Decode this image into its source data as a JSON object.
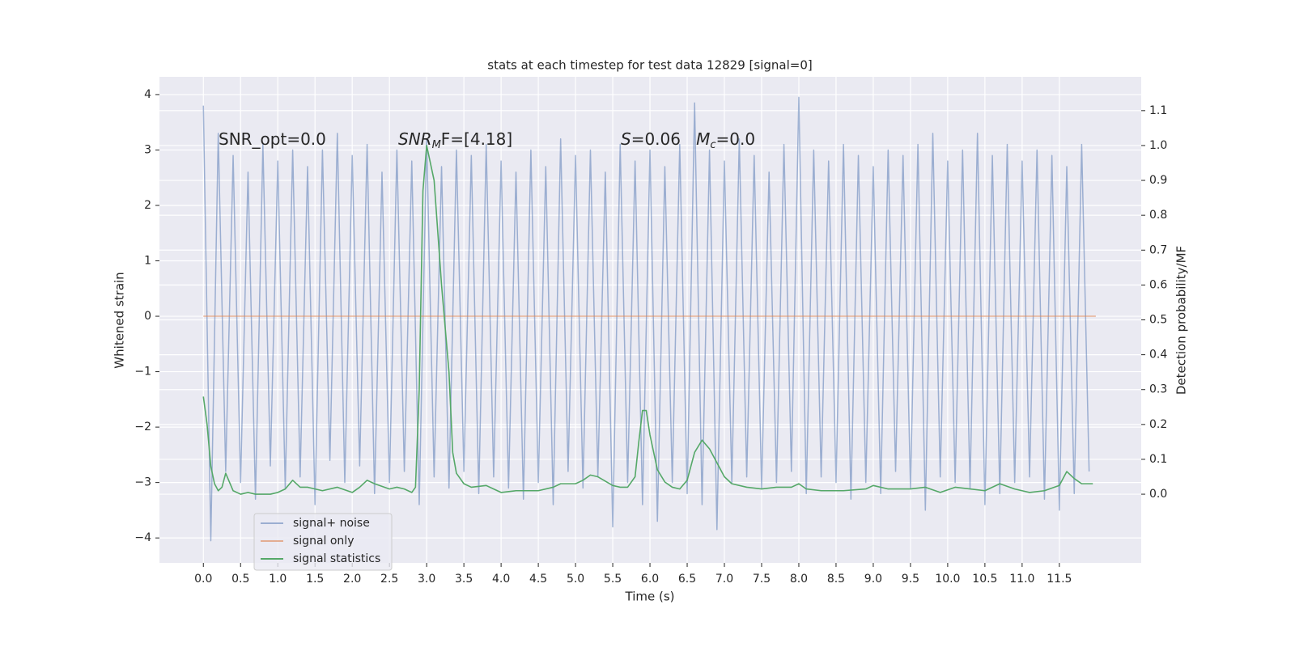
{
  "chart_data": {
    "type": "line",
    "title": "stats at each timestep for test data 12829 [signal=0]",
    "xlabel": "Time (s)",
    "ylabel": "Whitened strain",
    "y2label": "Detection probability/MF",
    "annotations": [
      [
        {
          "text": "SNR_opt=0.0"
        }
      ],
      [
        {
          "text": "SNR",
          "italic": true
        },
        {
          "text": "M",
          "italic": true,
          "sub": true
        },
        {
          "text": "F=[4.18]"
        }
      ],
      [
        {
          "text": "S",
          "italic": true
        },
        {
          "text": "=0.06   "
        },
        {
          "text": "M",
          "italic": true
        },
        {
          "text": "c",
          "italic": true,
          "sub": true
        },
        {
          "text": "=0.0"
        }
      ]
    ],
    "xlim": [
      -0.59,
      12.6
    ],
    "ylim": [
      -4.45,
      4.32
    ],
    "y2lim": [
      -0.197,
      1.197
    ],
    "xticks": [
      {
        "value": 0,
        "label": "0.0"
      },
      0.5,
      {
        "value": 1,
        "label": "1.0"
      },
      1.5,
      {
        "value": 2,
        "label": "2.0"
      },
      2.5,
      {
        "value": 3,
        "label": "3.0"
      },
      3.5,
      {
        "value": 4,
        "label": "4.0"
      },
      4.5,
      {
        "value": 5,
        "label": "5.0"
      },
      5.5,
      {
        "value": 6,
        "label": "6.0"
      },
      6.5,
      {
        "value": 7,
        "label": "7.0"
      },
      7.5,
      {
        "value": 8,
        "label": "8.0"
      },
      8.5,
      {
        "value": 9,
        "label": "9.0"
      },
      9.5,
      {
        "value": 10,
        "label": "10.0"
      },
      10.5,
      {
        "value": 11,
        "label": "11.0"
      },
      11.5
    ],
    "yticks": [
      {
        "value": -4,
        "label": "−4"
      },
      {
        "value": -3,
        "label": "−3"
      },
      {
        "value": -2,
        "label": "−2"
      },
      {
        "value": -1,
        "label": "−1"
      },
      0,
      1,
      2,
      3,
      4
    ],
    "y2ticks": [
      {
        "value": 0,
        "label": "0.0"
      },
      0.1,
      0.2,
      0.3,
      0.4,
      0.5,
      0.6,
      0.7,
      0.8,
      0.9,
      {
        "value": 1,
        "label": "1.0"
      },
      1.1
    ],
    "grid": true,
    "legend": "lower left",
    "series": [
      {
        "name": "signal+ noise",
        "color": "#4c72b0",
        "opacity": 0.5,
        "x": [
          0.0,
          0.1,
          0.2,
          0.3,
          0.4,
          0.5,
          0.6,
          0.7,
          0.8,
          0.9,
          1.0,
          1.1,
          1.2,
          1.3,
          1.4,
          1.5,
          1.6,
          1.7,
          1.8,
          1.9,
          2.0,
          2.1,
          2.2,
          2.3,
          2.4,
          2.5,
          2.6,
          2.7,
          2.8,
          2.9,
          3.0,
          3.1,
          3.2,
          3.3,
          3.4,
          3.5,
          3.6,
          3.7,
          3.8,
          3.9,
          4.0,
          4.1,
          4.2,
          4.3,
          4.4,
          4.5,
          4.6,
          4.7,
          4.8,
          4.9,
          5.0,
          5.1,
          5.2,
          5.3,
          5.4,
          5.5,
          5.6,
          5.7,
          5.8,
          5.9,
          6.0,
          6.1,
          6.2,
          6.3,
          6.4,
          6.5,
          6.6,
          6.7,
          6.8,
          6.9,
          7.0,
          7.1,
          7.2,
          7.3,
          7.4,
          7.5,
          7.6,
          7.7,
          7.8,
          7.9,
          8.0,
          8.1,
          8.2,
          8.3,
          8.4,
          8.5,
          8.6,
          8.7,
          8.8,
          8.9,
          9.0,
          9.1,
          9.2,
          9.3,
          9.4,
          9.5,
          9.6,
          9.7,
          9.8,
          9.9,
          10.0,
          10.1,
          10.2,
          10.3,
          10.4,
          10.5,
          10.6,
          10.7,
          10.8,
          10.9,
          11.0,
          11.1,
          11.2,
          11.3,
          11.4,
          11.5,
          11.6,
          11.7,
          11.8,
          11.9
        ],
        "values": [
          3.8,
          -4.05,
          3.3,
          -2.8,
          2.9,
          -3.0,
          2.6,
          -3.3,
          3.1,
          -2.7,
          2.8,
          -3.1,
          3.0,
          -2.9,
          2.7,
          -3.4,
          3.0,
          -2.6,
          3.3,
          -3.0,
          2.9,
          -2.7,
          3.1,
          -3.2,
          2.6,
          -3.0,
          3.0,
          -2.8,
          2.8,
          -3.4,
          3.2,
          -2.9,
          2.7,
          -3.1,
          3.0,
          -2.8,
          2.9,
          -3.2,
          3.1,
          -2.9,
          2.8,
          -3.1,
          2.6,
          -3.3,
          3.0,
          -3.0,
          2.7,
          -3.4,
          3.2,
          -2.8,
          2.9,
          -3.1,
          3.0,
          -2.9,
          2.6,
          -3.8,
          3.1,
          -3.0,
          2.8,
          -3.4,
          3.0,
          -3.7,
          2.7,
          -3.0,
          3.1,
          -3.2,
          3.85,
          -3.4,
          3.0,
          -3.85,
          2.8,
          -3.0,
          3.2,
          -2.9,
          2.9,
          -3.1,
          2.6,
          -3.0,
          3.1,
          -2.8,
          3.95,
          -3.2,
          3.0,
          -2.9,
          2.8,
          -3.0,
          3.1,
          -3.3,
          2.9,
          -3.0,
          2.7,
          -3.2,
          3.0,
          -2.8,
          2.9,
          -3.1,
          3.1,
          -3.5,
          3.3,
          -2.9,
          2.8,
          -3.0,
          3.0,
          -3.1,
          3.3,
          -3.4,
          2.9,
          -3.2,
          3.1,
          -3.0,
          2.8,
          -2.9,
          3.0,
          -3.3,
          2.9,
          -3.5,
          2.7,
          -3.2,
          3.1,
          -2.8
        ]
      },
      {
        "name": "signal only",
        "color": "#dd8452",
        "opacity": 0.6,
        "x": [
          0.0,
          11.99
        ],
        "values": [
          0,
          0
        ]
      },
      {
        "name": "signal statistics",
        "color": "#55a868",
        "opacity": 1,
        "axis": "y2",
        "x": [
          0.0,
          0.05,
          0.1,
          0.15,
          0.2,
          0.25,
          0.3,
          0.4,
          0.5,
          0.6,
          0.7,
          0.8,
          0.9,
          1.0,
          1.1,
          1.2,
          1.3,
          1.4,
          1.6,
          1.8,
          2.0,
          2.1,
          2.2,
          2.3,
          2.5,
          2.6,
          2.7,
          2.8,
          2.85,
          2.9,
          2.95,
          3.0,
          3.1,
          3.2,
          3.3,
          3.35,
          3.4,
          3.5,
          3.6,
          3.8,
          3.9,
          4.0,
          4.2,
          4.5,
          4.7,
          4.8,
          5.0,
          5.1,
          5.2,
          5.3,
          5.5,
          5.6,
          5.7,
          5.8,
          5.85,
          5.9,
          5.95,
          6.0,
          6.1,
          6.2,
          6.3,
          6.4,
          6.5,
          6.6,
          6.7,
          6.8,
          6.9,
          7.0,
          7.1,
          7.3,
          7.5,
          7.7,
          7.9,
          8.0,
          8.1,
          8.3,
          8.6,
          8.9,
          9.0,
          9.2,
          9.5,
          9.7,
          9.9,
          10.1,
          10.3,
          10.5,
          10.7,
          10.9,
          11.1,
          11.3,
          11.5,
          11.6,
          11.7,
          11.8,
          11.95
        ],
        "values": [
          0.28,
          0.2,
          0.08,
          0.03,
          0.01,
          0.02,
          0.06,
          0.01,
          0.0,
          0.005,
          0.0,
          0.0,
          0.0,
          0.005,
          0.015,
          0.04,
          0.02,
          0.02,
          0.01,
          0.02,
          0.005,
          0.02,
          0.04,
          0.03,
          0.015,
          0.02,
          0.015,
          0.005,
          0.02,
          0.3,
          0.87,
          1.0,
          0.9,
          0.6,
          0.35,
          0.12,
          0.06,
          0.03,
          0.02,
          0.025,
          0.015,
          0.005,
          0.01,
          0.01,
          0.02,
          0.03,
          0.03,
          0.04,
          0.055,
          0.05,
          0.025,
          0.02,
          0.02,
          0.05,
          0.15,
          0.24,
          0.24,
          0.17,
          0.07,
          0.035,
          0.02,
          0.015,
          0.04,
          0.12,
          0.155,
          0.13,
          0.09,
          0.05,
          0.03,
          0.02,
          0.015,
          0.02,
          0.02,
          0.03,
          0.015,
          0.01,
          0.01,
          0.015,
          0.025,
          0.015,
          0.015,
          0.02,
          0.005,
          0.02,
          0.015,
          0.01,
          0.03,
          0.015,
          0.005,
          0.01,
          0.025,
          0.065,
          0.045,
          0.03,
          0.03
        ]
      }
    ]
  }
}
